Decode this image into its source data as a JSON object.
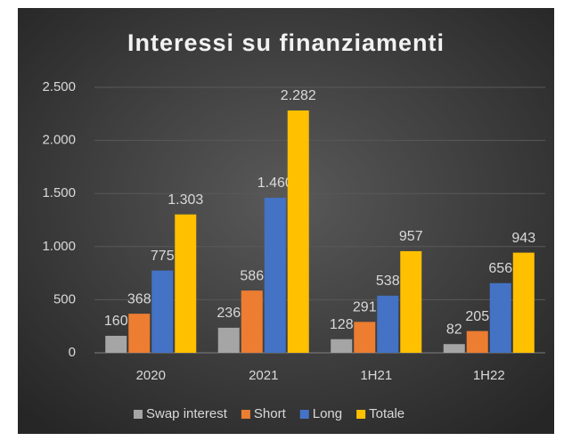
{
  "chart_data": {
    "type": "bar",
    "title": "Interessi su finanziamenti",
    "categories": [
      "2020",
      "2021",
      "1H21",
      "1H22"
    ],
    "series": [
      {
        "name": "Swap interest",
        "color": "#a5a5a5",
        "values": [
          160,
          236,
          128,
          82
        ],
        "value_labels": [
          "160",
          "236",
          "128",
          "82"
        ]
      },
      {
        "name": "Short",
        "color": "#ed7d31",
        "values": [
          368,
          586,
          291,
          205
        ],
        "value_labels": [
          "368",
          "586",
          "291",
          "205"
        ]
      },
      {
        "name": "Long",
        "color": "#4472c4",
        "values": [
          775,
          1460,
          538,
          656
        ],
        "value_labels": [
          "775",
          "1.460",
          "538",
          "656"
        ]
      },
      {
        "name": "Totale",
        "color": "#ffc000",
        "values": [
          1303,
          2282,
          957,
          943
        ],
        "value_labels": [
          "1.303",
          "2.282",
          "957",
          "943"
        ]
      }
    ],
    "ylim": [
      0,
      2500
    ],
    "yticks": [
      0,
      500,
      {
        "value": 1000,
        "label": "1.000"
      },
      {
        "value": 1500,
        "label": "1.500"
      },
      {
        "value": 2000,
        "label": "2.000"
      },
      {
        "value": 2500,
        "label": "2.500"
      }
    ],
    "grid": true,
    "legend": "bottom"
  }
}
